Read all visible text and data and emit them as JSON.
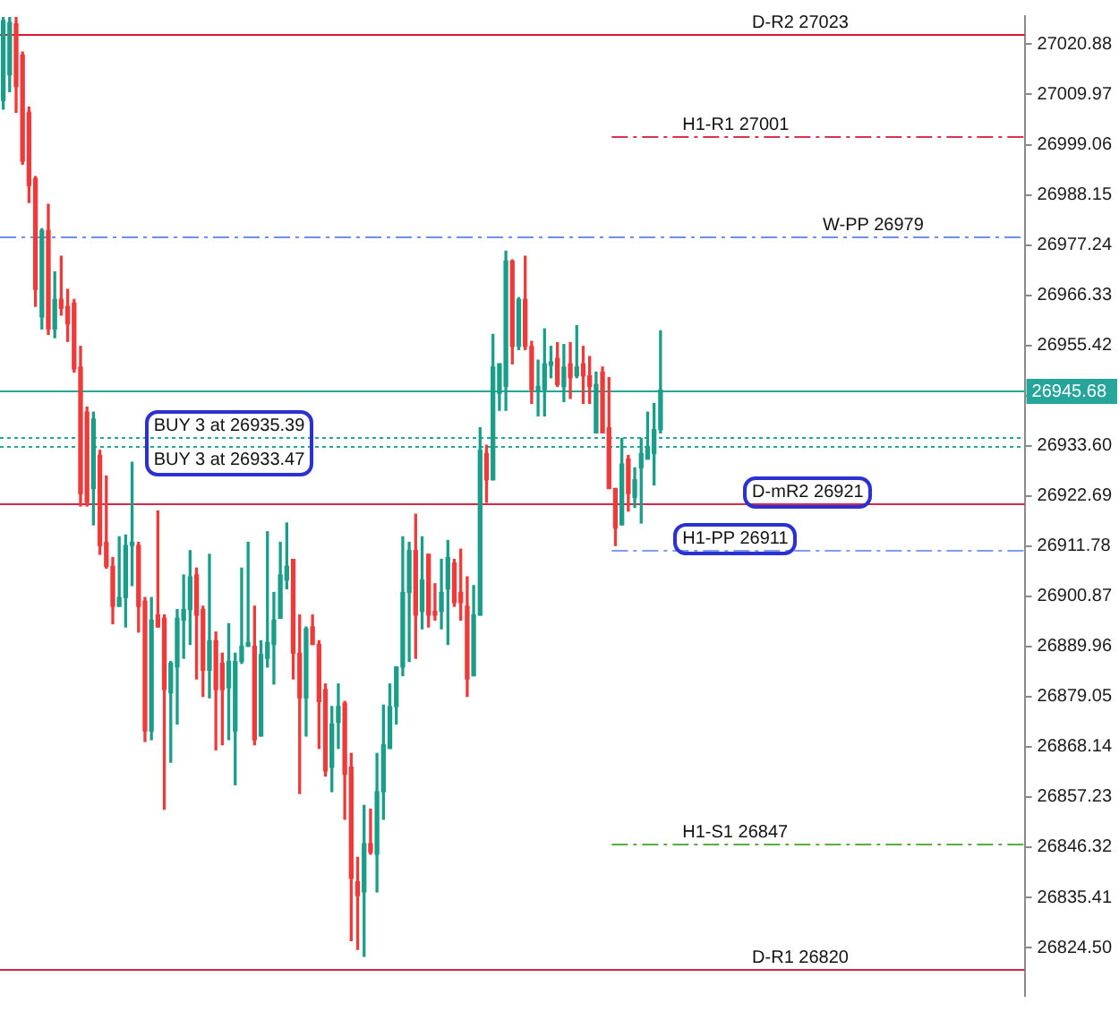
{
  "chart_data": {
    "type": "candlestick",
    "categories": [
      null,
      null,
      null,
      null,
      null,
      null,
      null,
      null,
      null,
      null,
      null,
      null,
      null,
      null,
      null,
      null,
      null,
      null,
      null,
      null,
      null,
      null,
      null,
      null,
      null,
      null,
      null,
      null,
      null,
      null,
      null,
      null,
      null,
      null,
      null,
      null,
      null,
      null,
      null,
      null,
      null,
      null,
      null,
      null,
      null,
      null,
      null,
      null,
      null,
      null,
      null,
      null,
      null,
      null,
      null,
      null,
      null,
      null,
      null,
      null,
      null,
      null,
      null,
      null,
      null,
      null,
      null,
      null,
      null,
      null,
      null,
      null,
      null,
      null,
      null,
      null,
      null,
      null,
      null,
      null,
      null,
      null,
      null,
      null,
      null,
      null,
      null,
      null,
      null,
      null,
      null,
      null,
      null,
      null,
      null,
      null,
      null,
      null,
      null,
      null,
      null,
      null,
      null,
      null,
      null,
      null,
      null,
      null,
      null,
      null,
      null,
      null,
      null,
      null,
      null,
      null,
      null,
      null,
      null,
      null,
      null,
      null,
      null,
      null,
      null,
      null,
      null,
      null,
      null,
      null,
      null,
      null,
      null,
      null,
      null,
      null,
      null,
      null,
      null,
      null,
      null,
      null,
      null,
      null,
      null,
      null,
      null,
      null,
      null,
      null,
      null,
      null,
      null,
      null,
      null,
      null,
      null,
      null,
      null
    ],
    "ohlc": [
      [
        27008.7,
        27026.7,
        27006.8,
        27026.0
      ],
      [
        27014.3,
        27026.7,
        27010.6,
        27025.6
      ],
      [
        27025.3,
        27026.7,
        27006.1,
        27011.7
      ],
      [
        27018.5,
        27019.2,
        26994.8,
        26995.5
      ],
      [
        27006.1,
        27007.2,
        26986.5,
        26990.2
      ],
      [
        26991.7,
        26992.1,
        26963.9,
        26967.6
      ],
      [
        26961.6,
        26980.8,
        26959.0,
        26980.4
      ],
      [
        26980.4,
        26986.1,
        26957.8,
        26959.0
      ],
      [
        26959.0,
        26971.4,
        26957.1,
        26965.4
      ],
      [
        26965.4,
        26974.8,
        26962.0,
        26963.5
      ],
      [
        26963.9,
        26967.6,
        26956.3,
        26960.1
      ],
      [
        26964.6,
        26965.4,
        26949.6,
        26950.3
      ],
      [
        26950.7,
        26955.2,
        26920.5,
        26923.2
      ],
      [
        26940.9,
        26942.0,
        26920.5,
        26921.3
      ],
      [
        26924.3,
        26940.9,
        26916.4,
        26939.4
      ],
      [
        26931.5,
        26932.6,
        26910.0,
        26911.9
      ],
      [
        26912.6,
        26927.0,
        26907.0,
        26907.4
      ],
      [
        26907.4,
        26909.3,
        26894.9,
        26898.7
      ],
      [
        26898.7,
        26913.8,
        26898.7,
        26900.6
      ],
      [
        26900.6,
        26914.2,
        26894.2,
        26911.9
      ],
      [
        26911.9,
        26930.0,
        26903.2,
        26912.6
      ],
      [
        26911.9,
        26912.6,
        26893.1,
        26898.7
      ],
      [
        26899.8,
        26900.6,
        26869.3,
        26871.6
      ],
      [
        26871.6,
        26900.6,
        26869.7,
        26895.7
      ],
      [
        26896.8,
        26919.4,
        26894.2,
        26894.2
      ],
      [
        26896.1,
        26896.8,
        26854.6,
        26880.6
      ],
      [
        26879.9,
        26886.7,
        26864.8,
        26886.3
      ],
      [
        26885.5,
        26898.0,
        26873.1,
        26896.1
      ],
      [
        26895.7,
        26905.5,
        26887.4,
        26898.0
      ],
      [
        26898.0,
        26910.8,
        26890.4,
        26905.1
      ],
      [
        26905.5,
        26907.0,
        26882.9,
        26896.8
      ],
      [
        26898.0,
        26898.7,
        26879.1,
        26884.8
      ],
      [
        26884.8,
        26910.0,
        26878.8,
        26891.2
      ],
      [
        26891.2,
        26893.1,
        26867.5,
        26880.6
      ],
      [
        26886.3,
        26888.5,
        26868.6,
        26880.6
      ],
      [
        26881.0,
        26894.9,
        26869.7,
        26886.7
      ],
      [
        26871.6,
        26888.5,
        26859.9,
        26886.7
      ],
      [
        26886.7,
        26907.0,
        26886.3,
        26890.0
      ],
      [
        26890.0,
        26912.6,
        26890.0,
        26890.8
      ],
      [
        26890.0,
        26898.7,
        26868.6,
        26869.7
      ],
      [
        26870.5,
        26891.2,
        26870.5,
        26888.2
      ],
      [
        26887.4,
        26914.9,
        26885.5,
        26890.8
      ],
      [
        26890.4,
        26901.7,
        26881.8,
        26895.7
      ],
      [
        26896.1,
        26912.6,
        26896.1,
        26905.5
      ],
      [
        26904.4,
        26916.8,
        26902.5,
        26907.4
      ],
      [
        26908.9,
        26908.9,
        26882.9,
        26888.5
      ],
      [
        26888.5,
        26896.8,
        26858.0,
        26878.8
      ],
      [
        26878.8,
        26894.2,
        26870.5,
        26893.8
      ],
      [
        26894.2,
        26896.8,
        26890.4,
        26890.4
      ],
      [
        26890.4,
        26891.2,
        26867.8,
        26878.0
      ],
      [
        26880.6,
        26881.8,
        26861.8,
        26862.9
      ],
      [
        26863.7,
        26876.9,
        26858.4,
        26873.1
      ],
      [
        26873.5,
        26881.8,
        26867.8,
        26876.9
      ],
      [
        26877.6,
        26878.0,
        26852.4,
        26862.2
      ],
      [
        26863.7,
        26866.7,
        26826.0,
        26839.6
      ],
      [
        26838.8,
        26844.1,
        26824.1,
        26835.8
      ],
      [
        26836.6,
        26855.4,
        26822.6,
        26847.1
      ],
      [
        26847.1,
        26854.6,
        26844.8,
        26845.2
      ],
      [
        26844.8,
        26866.7,
        26836.6,
        26858.4
      ],
      [
        26858.4,
        26877.2,
        26852.4,
        26868.6
      ],
      [
        26867.8,
        26881.8,
        26867.8,
        26876.9
      ],
      [
        26876.9,
        26885.5,
        26873.1,
        26885.5
      ],
      [
        26885.5,
        26913.8,
        26883.6,
        26901.7
      ],
      [
        26901.7,
        26912.6,
        26886.7,
        26910.8
      ],
      [
        26910.8,
        26918.7,
        26887.4,
        26896.8
      ],
      [
        26897.6,
        26913.8,
        26893.8,
        26904.4
      ],
      [
        26910.0,
        26910.0,
        26894.2,
        26896.8
      ],
      [
        26897.6,
        26903.6,
        26895.7,
        26896.8
      ],
      [
        26897.6,
        26908.9,
        26893.8,
        26901.7
      ],
      [
        26902.5,
        26913.0,
        26890.4,
        26909.3
      ],
      [
        26908.1,
        26908.9,
        26898.7,
        26899.5
      ],
      [
        26901.7,
        26911.1,
        26895.7,
        26899.5
      ],
      [
        26898.7,
        26905.1,
        26879.1,
        26882.9
      ],
      [
        26883.6,
        26903.2,
        26883.6,
        26896.8
      ],
      [
        26896.8,
        26937.5,
        26896.8,
        26932.6
      ],
      [
        26931.9,
        26933.7,
        26921.3,
        26926.2
      ],
      [
        26926.2,
        26957.8,
        26926.2,
        26950.7
      ],
      [
        26945.0,
        26951.4,
        26941.3,
        26951.4
      ],
      [
        26946.5,
        26975.9,
        26941.3,
        26973.7
      ],
      [
        26973.7,
        26974.0,
        26951.4,
        26955.2
      ],
      [
        26955.2,
        26965.8,
        26954.5,
        26965.4
      ],
      [
        26965.4,
        26974.8,
        26954.5,
        26955.2
      ],
      [
        26955.2,
        26956.3,
        26942.8,
        26945.8
      ],
      [
        26945.4,
        26952.2,
        26940.1,
        26946.5
      ],
      [
        26945.8,
        26959.0,
        26940.1,
        26951.4
      ],
      [
        26951.1,
        26955.2,
        26948.4,
        26951.8
      ],
      [
        26952.6,
        26956.0,
        26946.5,
        26946.9
      ],
      [
        26946.5,
        26955.6,
        26943.2,
        26950.7
      ],
      [
        26951.4,
        26956.0,
        26943.9,
        26948.4
      ],
      [
        26948.8,
        26959.7,
        26948.4,
        26950.7
      ],
      [
        26951.4,
        26955.2,
        26942.8,
        26948.8
      ],
      [
        26948.8,
        26953.0,
        26942.8,
        26946.5
      ],
      [
        26936.4,
        26949.6,
        26936.4,
        26946.9
      ],
      [
        26949.6,
        26950.7,
        26936.4,
        26936.4
      ],
      [
        26937.5,
        26948.4,
        26924.3,
        26924.3
      ],
      [
        26924.3,
        26924.3,
        26911.9,
        26915.7
      ],
      [
        26916.4,
        26935.2,
        26916.4,
        26929.6
      ],
      [
        26930.7,
        26931.5,
        26919.4,
        26923.2
      ],
      [
        26922.4,
        26928.8,
        26920.2,
        26926.2
      ],
      [
        26928.8,
        26935.2,
        26916.8,
        26931.9
      ],
      [
        26930.7,
        26940.9,
        26930.7,
        26933.4
      ],
      [
        26931.9,
        26942.8,
        26925.1,
        26937.1
      ],
      [
        26937.1,
        26958.6,
        26936.4,
        26945.7
      ],
      null,
      null,
      null,
      null,
      null,
      null,
      null,
      null,
      null,
      null,
      null,
      null,
      null,
      null,
      null,
      null,
      null,
      null,
      null,
      null,
      null,
      null,
      null,
      null,
      null,
      null,
      null,
      null,
      null,
      null,
      null,
      null,
      null,
      null,
      null,
      null,
      null,
      null,
      null,
      null,
      null,
      null,
      null,
      null,
      null,
      null,
      null,
      null,
      null,
      null,
      null,
      null,
      null,
      null,
      null,
      null
    ],
    "colors": [
      "#1b9e89",
      "#1b9e89",
      "#ee3a3a",
      "#ee3a3a",
      "#ee3a3a",
      "#ee3a3a",
      "#1b9e89",
      "#ee3a3a",
      "#1b9e89",
      "#ee3a3a",
      "#ee3a3a",
      "#ee3a3a",
      "#ee3a3a",
      "#ee3a3a",
      "#1b9e89",
      "#ee3a3a",
      "#ee3a3a",
      "#ee3a3a",
      "#1b9e89",
      "#1b9e89",
      "#1b9e89",
      "#ee3a3a",
      "#ee3a3a",
      "#1b9e89",
      "#ee3a3a",
      "#ee3a3a",
      "#1b9e89",
      "#1b9e89",
      "#1b9e89",
      "#1b9e89",
      "#ee3a3a",
      "#ee3a3a",
      "#1b9e89",
      "#ee3a3a",
      "#ee3a3a",
      "#1b9e89",
      "#1b9e89",
      "#1b9e89",
      "#1b9e89",
      "#ee3a3a",
      "#1b9e89",
      "#1b9e89",
      "#1b9e89",
      "#1b9e89",
      "#1b9e89",
      "#ee3a3a",
      "#ee3a3a",
      "#1b9e89",
      "#ee3a3a",
      "#ee3a3a",
      "#ee3a3a",
      "#1b9e89",
      "#1b9e89",
      "#ee3a3a",
      "#ee3a3a",
      "#ee3a3a",
      "#1b9e89",
      "#ee3a3a",
      "#1b9e89",
      "#1b9e89",
      "#1b9e89",
      "#1b9e89",
      "#1b9e89",
      "#1b9e89",
      "#ee3a3a",
      "#1b9e89",
      "#ee3a3a",
      "#ee3a3a",
      "#1b9e89",
      "#1b9e89",
      "#ee3a3a",
      "#ee3a3a",
      "#ee3a3a",
      "#1b9e89",
      "#1b9e89",
      "#ee3a3a",
      "#1b9e89",
      "#1b9e89",
      "#1b9e89",
      "#ee3a3a",
      "#1b9e89",
      "#ee3a3a",
      "#ee3a3a",
      "#1b9e89",
      "#1b9e89",
      "#1b9e89",
      "#ee3a3a",
      "#1b9e89",
      "#ee3a3a",
      "#1b9e89",
      "#ee3a3a",
      "#ee3a3a",
      "#1b9e89",
      "#ee3a3a",
      "#ee3a3a",
      "#ee3a3a",
      "#1b9e89",
      "#ee3a3a",
      "#1b9e89",
      "#1b9e89",
      "#1b9e89",
      "#1b9e89",
      "#1b9e89",
      null,
      null,
      null,
      null,
      null,
      null,
      null,
      null,
      null,
      null,
      null,
      null,
      null,
      null,
      null,
      null,
      null,
      null,
      null,
      null,
      null,
      null,
      null,
      null,
      null,
      null,
      null,
      null,
      null,
      null,
      null,
      null,
      null,
      null,
      null,
      null,
      null,
      null,
      null,
      null,
      null,
      null,
      null,
      null,
      null,
      null,
      null,
      null,
      null,
      null,
      null,
      null,
      null,
      null,
      null,
      null
    ],
    "ylim": [
      26814,
      27027
    ],
    "yticks": [
      27020.88,
      27009.97,
      26999.06,
      26988.15,
      26977.24,
      26966.33,
      26955.42,
      {
        "value": 26944.51,
        "label": null
      },
      {
        "value": 26933.6,
        "label": "26933.60"
      },
      26922.69,
      26911.78,
      26900.87,
      26889.96,
      26879.05,
      26868.14,
      26857.23,
      26846.32,
      26835.41,
      {
        "value": 26824.5,
        "label": "26824.50"
      }
    ],
    "ref_lines": [
      {
        "axis": "y",
        "value": 27023,
        "label": "D-R2 27023",
        "color": "#e3132f",
        "line_style": "solid"
      },
      {
        "axis": "y",
        "value": 27001,
        "label": "H1-R1 27001",
        "color": "#d9334f",
        "line_style": "dashed"
      },
      {
        "axis": "y",
        "value": 26979,
        "label": "W-PP 26979",
        "color": "#6f8ff0",
        "line_style": "dashed"
      },
      {
        "axis": "y",
        "value": 26945.68,
        "label": "26945.68",
        "color": "#26a69a",
        "line_style": "solid"
      },
      {
        "axis": "y",
        "value": 26935.39,
        "label": "BUY 3 at 26935.39",
        "color": "#26a69a",
        "line_style": "dotted"
      },
      {
        "axis": "y",
        "value": 26933.47,
        "label": "BUY 3 at 26933.47",
        "color": "#26a69a",
        "line_style": "dotted"
      },
      {
        "axis": "y",
        "value": 26921,
        "label": "D-mR2 26921",
        "color": "#d8284a",
        "line_style": "solid"
      },
      {
        "axis": "y",
        "value": 26911,
        "label": "H1-PP 26911",
        "color": "#7f9cf0",
        "line_style": "dashed"
      },
      {
        "axis": "y",
        "value": 26847,
        "label": "H1-S1 26847",
        "color": "#5cad3f",
        "line_style": "dashed"
      },
      {
        "axis": "y",
        "value": 26820,
        "label": "D-R1 26820",
        "color": "#d8284a",
        "line_style": "solid"
      }
    ],
    "grid": false,
    "legend": false,
    "tick_labels": "y"
  }
}
